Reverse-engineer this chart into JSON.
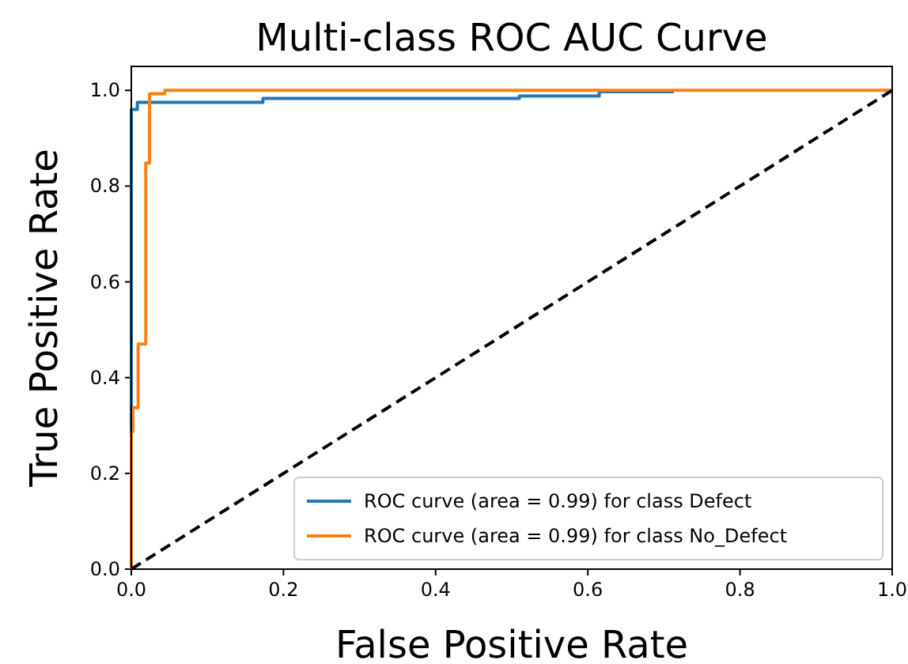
{
  "chart_data": {
    "type": "step",
    "title": "Multi-class ROC AUC Curve",
    "xlabel": "False Positive Rate",
    "ylabel": "True Positive Rate",
    "xlim": [
      0,
      1
    ],
    "ylim": [
      0,
      1.05
    ],
    "xticks": [
      {
        "value": 0,
        "label": "0.0"
      },
      0.2,
      0.4,
      0.6,
      0.8,
      {
        "value": 1,
        "label": "1.0"
      }
    ],
    "yticks": [
      {
        "value": 0,
        "label": "0.0"
      },
      0.2,
      0.4,
      0.6,
      0.8,
      {
        "value": 1,
        "label": "1.0"
      }
    ],
    "legend": "bottom right",
    "grid": false,
    "series": [
      {
        "name": "ROC curve (area = 0.99) for class Defect",
        "color": "#1f77b4",
        "x": [
          0,
          0,
          0.008,
          0.008,
          0.173,
          0.173,
          0.51,
          0.51,
          0.615,
          0.615,
          0.713
        ],
        "values": [
          0,
          0.96,
          0.96,
          0.975,
          0.975,
          0.983,
          0.983,
          0.988,
          0.988,
          0.997,
          0.997
        ]
      },
      {
        "name": "ROC curve (area = 0.99) for class No_Defect",
        "color": "#ff7f0e",
        "x": [
          0,
          0,
          0.002,
          0.002,
          0.009,
          0.009,
          0.019,
          0.019,
          0.024,
          0.024,
          0.044,
          0.044,
          1
        ],
        "values": [
          0,
          0.287,
          0.287,
          0.337,
          0.337,
          0.47,
          0.47,
          0.848,
          0.848,
          0.993,
          0.993,
          1.0,
          1.0
        ]
      },
      {
        "type": "line",
        "color": "#000000",
        "line_style": "dashed",
        "x": [
          0,
          1
        ],
        "values": [
          0,
          1
        ]
      }
    ]
  }
}
